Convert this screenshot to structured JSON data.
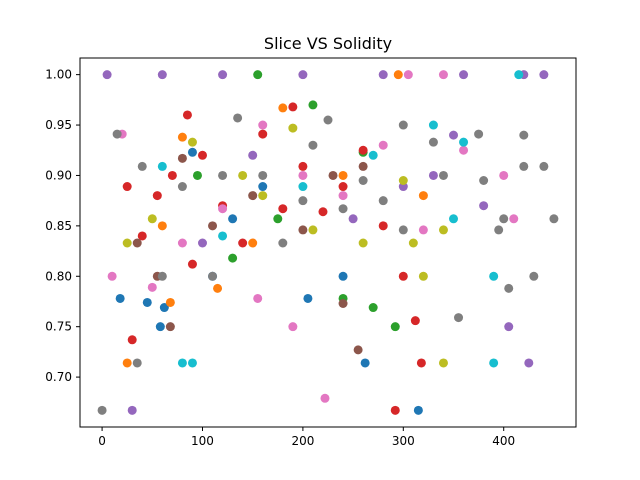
{
  "chart_data": {
    "type": "scatter",
    "title": "Slice VS Solidity",
    "xlabel": "",
    "ylabel": "",
    "xlim": [
      -22,
      472
    ],
    "ylim": [
      0.6505,
      1.0165
    ],
    "xticks": [
      0,
      100,
      200,
      300,
      400
    ],
    "xtick_labels": [
      "0",
      "100",
      "200",
      "300",
      "400"
    ],
    "yticks": [
      0.7,
      0.75,
      0.8,
      0.85,
      0.9,
      0.95,
      1.0
    ],
    "ytick_labels": [
      "0.70",
      "0.75",
      "0.80",
      "0.85",
      "0.90",
      "0.95",
      "1.00"
    ],
    "grid": false,
    "legend": "none",
    "palette": [
      "#1f77b4",
      "#ff7f0e",
      "#2ca02c",
      "#d62728",
      "#9467bd",
      "#8c564b",
      "#e377c2",
      "#7f7f7f",
      "#bcbd22",
      "#17becf"
    ],
    "series": [
      {
        "color": "#1f77b4",
        "points": [
          [
            18,
            0.778
          ],
          [
            45,
            0.774
          ],
          [
            58,
            0.75
          ],
          [
            62,
            0.769
          ],
          [
            205,
            0.778
          ],
          [
            262,
            0.714
          ],
          [
            315,
            0.667
          ],
          [
            110,
            0.8
          ],
          [
            240,
            0.8
          ],
          [
            160,
            0.889
          ],
          [
            90,
            0.923
          ],
          [
            130,
            0.857
          ]
        ]
      },
      {
        "color": "#ff7f0e",
        "points": [
          [
            25,
            0.714
          ],
          [
            68,
            0.774
          ],
          [
            115,
            0.788
          ],
          [
            295,
            1.0
          ],
          [
            180,
            0.967
          ],
          [
            80,
            0.938
          ],
          [
            240,
            0.9
          ],
          [
            320,
            0.88
          ],
          [
            60,
            0.85
          ],
          [
            150,
            0.833
          ]
        ]
      },
      {
        "color": "#2ca02c",
        "points": [
          [
            292,
            0.75
          ],
          [
            240,
            0.778
          ],
          [
            270,
            0.769
          ],
          [
            155,
            1.0
          ],
          [
            210,
            0.97
          ],
          [
            95,
            0.9
          ],
          [
            175,
            0.857
          ],
          [
            260,
            0.923
          ],
          [
            130,
            0.818
          ]
        ]
      },
      {
        "color": "#d62728",
        "points": [
          [
            25,
            0.889
          ],
          [
            40,
            0.84
          ],
          [
            55,
            0.88
          ],
          [
            70,
            0.9
          ],
          [
            85,
            0.96
          ],
          [
            100,
            0.92
          ],
          [
            120,
            0.87
          ],
          [
            140,
            0.833
          ],
          [
            160,
            0.941
          ],
          [
            180,
            0.867
          ],
          [
            200,
            0.909
          ],
          [
            220,
            0.864
          ],
          [
            240,
            0.889
          ],
          [
            260,
            0.925
          ],
          [
            280,
            0.85
          ],
          [
            300,
            0.8
          ],
          [
            312,
            0.756
          ],
          [
            292,
            0.667
          ],
          [
            318,
            0.714
          ],
          [
            30,
            0.737
          ],
          [
            190,
            0.968
          ],
          [
            90,
            0.812
          ]
        ]
      },
      {
        "color": "#9467bd",
        "points": [
          [
            5,
            1.0
          ],
          [
            60,
            1.0
          ],
          [
            120,
            1.0
          ],
          [
            200,
            1.0
          ],
          [
            280,
            1.0
          ],
          [
            360,
            1.0
          ],
          [
            420,
            1.0
          ],
          [
            440,
            1.0
          ],
          [
            30,
            0.667
          ],
          [
            425,
            0.714
          ],
          [
            405,
            0.75
          ],
          [
            330,
            0.9
          ],
          [
            350,
            0.94
          ],
          [
            380,
            0.87
          ],
          [
            250,
            0.857
          ],
          [
            300,
            0.889
          ],
          [
            150,
            0.92
          ],
          [
            100,
            0.833
          ]
        ]
      },
      {
        "color": "#8c564b",
        "points": [
          [
            68,
            0.75
          ],
          [
            55,
            0.8
          ],
          [
            230,
            0.9
          ],
          [
            150,
            0.88
          ],
          [
            110,
            0.85
          ],
          [
            255,
            0.727
          ],
          [
            240,
            0.773
          ],
          [
            35,
            0.833
          ],
          [
            80,
            0.917
          ],
          [
            260,
            0.909
          ],
          [
            200,
            0.846
          ]
        ]
      },
      {
        "color": "#e377c2",
        "points": [
          [
            10,
            0.8
          ],
          [
            50,
            0.789
          ],
          [
            155,
            0.778
          ],
          [
            190,
            0.75
          ],
          [
            222,
            0.679
          ],
          [
            305,
            1.0
          ],
          [
            340,
            1.0
          ],
          [
            400,
            0.9
          ],
          [
            410,
            0.857
          ],
          [
            360,
            0.925
          ],
          [
            200,
            0.9
          ],
          [
            120,
            0.867
          ],
          [
            80,
            0.833
          ],
          [
            160,
            0.95
          ],
          [
            240,
            0.88
          ],
          [
            280,
            0.93
          ],
          [
            320,
            0.846
          ],
          [
            20,
            0.941
          ]
        ]
      },
      {
        "color": "#7f7f7f",
        "points": [
          [
            0,
            0.667
          ],
          [
            35,
            0.714
          ],
          [
            60,
            0.8
          ],
          [
            110,
            0.8
          ],
          [
            180,
            0.833
          ],
          [
            210,
            0.93
          ],
          [
            260,
            0.895
          ],
          [
            300,
            0.846
          ],
          [
            340,
            0.9
          ],
          [
            355,
            0.759
          ],
          [
            380,
            0.895
          ],
          [
            400,
            0.857
          ],
          [
            420,
            0.909
          ],
          [
            440,
            0.909
          ],
          [
            450,
            0.857
          ],
          [
            430,
            0.8
          ],
          [
            405,
            0.788
          ],
          [
            395,
            0.846
          ],
          [
            375,
            0.941
          ],
          [
            330,
            0.933
          ],
          [
            280,
            0.875
          ],
          [
            240,
            0.867
          ],
          [
            200,
            0.875
          ],
          [
            160,
            0.9
          ],
          [
            120,
            0.9
          ],
          [
            80,
            0.889
          ],
          [
            40,
            0.909
          ],
          [
            15,
            0.941
          ],
          [
            135,
            0.957
          ],
          [
            225,
            0.955
          ],
          [
            300,
            0.95
          ],
          [
            420,
            0.94
          ]
        ]
      },
      {
        "color": "#bcbd22",
        "points": [
          [
            340,
            0.714
          ],
          [
            320,
            0.8
          ],
          [
            310,
            0.833
          ],
          [
            340,
            0.846
          ],
          [
            90,
            0.933
          ],
          [
            160,
            0.88
          ],
          [
            210,
            0.846
          ],
          [
            50,
            0.857
          ],
          [
            140,
            0.9
          ],
          [
            260,
            0.833
          ],
          [
            300,
            0.895
          ],
          [
            25,
            0.833
          ],
          [
            190,
            0.947
          ]
        ]
      },
      {
        "color": "#17becf",
        "points": [
          [
            80,
            0.714
          ],
          [
            90,
            0.714
          ],
          [
            390,
            0.714
          ],
          [
            390,
            0.8
          ],
          [
            360,
            0.933
          ],
          [
            350,
            0.857
          ],
          [
            415,
            1.0
          ],
          [
            200,
            0.889
          ],
          [
            120,
            0.84
          ],
          [
            60,
            0.909
          ],
          [
            270,
            0.92
          ],
          [
            330,
            0.95
          ]
        ]
      }
    ]
  }
}
